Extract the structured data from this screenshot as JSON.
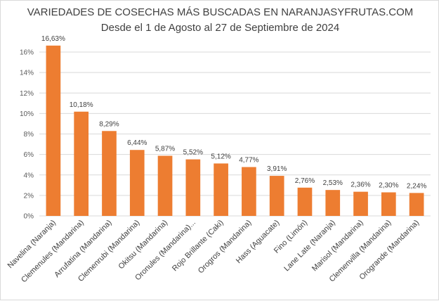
{
  "chart_data": {
    "type": "bar",
    "title": "VARIEDADES DE COSECHAS MÁS BUSCADAS EN NARANJASYFRUTAS.COM",
    "subtitle": "Desde el 1 de Agosto al 27 de Septiembre de 2024",
    "xlabel": "",
    "ylabel": "",
    "categories": [
      "Navelina (Naranja)",
      "Clemenules (Mandarina)",
      "Arrufatina (Mandarina)",
      "Clemenrubi (Mandarina)",
      "Okitsu (Mandarina)",
      "Oronules (Mandarina)...",
      "Rojo Brillante (Caki)",
      "Orogros (Mandarina)",
      "Hass (Aguacate)",
      "Fino (Limón)",
      "Lane Late (Naranja)",
      "Marisol (Mandarina)",
      "Clemenvilla (Mandarina)",
      "Orogrande (Mandarina)"
    ],
    "values": [
      16.63,
      10.18,
      8.29,
      6.44,
      5.87,
      5.52,
      5.12,
      4.77,
      3.91,
      2.76,
      2.53,
      2.36,
      2.3,
      2.24
    ],
    "value_labels": [
      "16,63%",
      "10,18%",
      "8,29%",
      "6,44%",
      "5,87%",
      "5,52%",
      "5,12%",
      "4,77%",
      "3,91%",
      "2,76%",
      "2,53%",
      "2,36%",
      "2,30%",
      "2,24%"
    ],
    "ylim": [
      0,
      16
    ],
    "yticks": [
      0,
      2,
      4,
      6,
      8,
      10,
      12,
      14,
      16
    ],
    "ytick_labels": [
      "0%",
      "2%",
      "4%",
      "6%",
      "8%",
      "10%",
      "12%",
      "14%",
      "16%"
    ],
    "grid": true,
    "legend": "none",
    "bar_color": "#ED7D31"
  }
}
